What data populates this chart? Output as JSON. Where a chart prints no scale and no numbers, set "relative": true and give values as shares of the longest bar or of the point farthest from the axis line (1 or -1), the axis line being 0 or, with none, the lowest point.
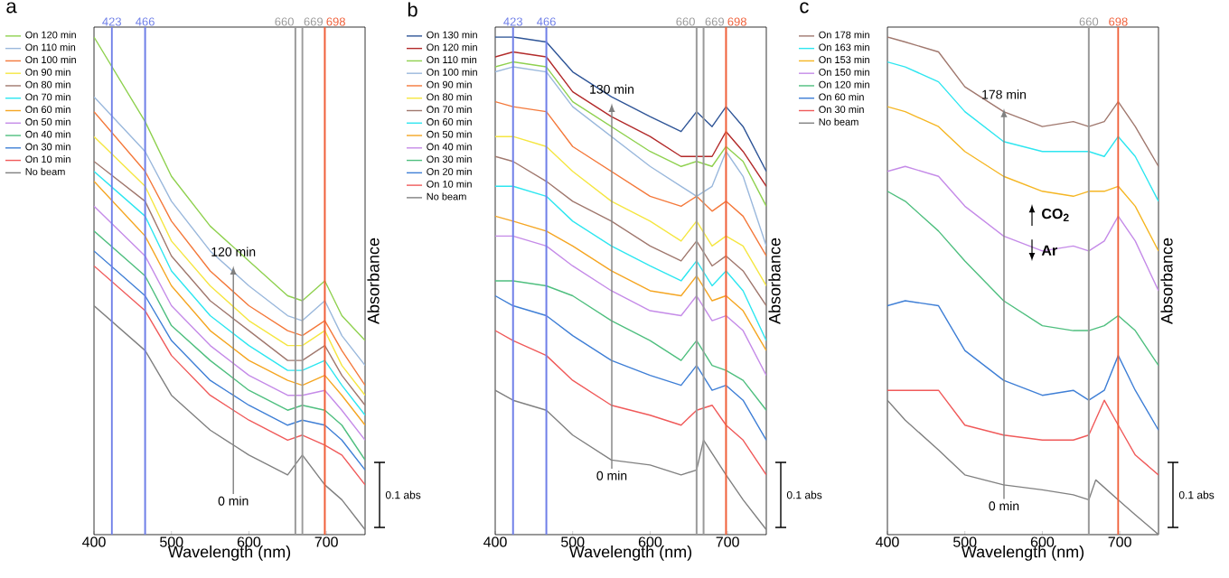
{
  "chart_data": [
    {
      "type": "line",
      "title": "a",
      "xlabel": "Wavelength (nm)",
      "ylabel": "Absorbance",
      "relative": true,
      "tick_labels": "x",
      "legend": "left",
      "xlim": [
        400,
        750
      ],
      "xticks": [
        400,
        500,
        600,
        700
      ],
      "x": [
        400,
        466,
        500,
        550,
        600,
        650,
        669,
        698,
        720,
        750
      ],
      "series": [
        {
          "name": "On 120 min",
          "color": "#8fd14f",
          "values": [
            1.0,
            0.83,
            0.72,
            0.62,
            0.55,
            0.48,
            0.47,
            0.51,
            0.44,
            0.39
          ]
        },
        {
          "name": "On 110 min",
          "color": "#9ab8dc",
          "values": [
            0.88,
            0.77,
            0.67,
            0.57,
            0.5,
            0.44,
            0.43,
            0.47,
            0.4,
            0.34
          ]
        },
        {
          "name": "On 100 min",
          "color": "#f4793b",
          "values": [
            0.85,
            0.73,
            0.63,
            0.53,
            0.46,
            0.41,
            0.4,
            0.43,
            0.37,
            0.3
          ]
        },
        {
          "name": "On 90 min",
          "color": "#f5e642",
          "values": [
            0.8,
            0.7,
            0.59,
            0.5,
            0.43,
            0.38,
            0.38,
            0.41,
            0.34,
            0.28
          ]
        },
        {
          "name": "On 80 min",
          "color": "#a0786e",
          "values": [
            0.75,
            0.67,
            0.56,
            0.47,
            0.41,
            0.35,
            0.35,
            0.38,
            0.32,
            0.26
          ]
        },
        {
          "name": "On 70 min",
          "color": "#2ee6f0",
          "values": [
            0.73,
            0.64,
            0.53,
            0.44,
            0.38,
            0.33,
            0.33,
            0.35,
            0.3,
            0.24
          ]
        },
        {
          "name": "On 60 min",
          "color": "#f5a623",
          "values": [
            0.71,
            0.6,
            0.5,
            0.41,
            0.35,
            0.31,
            0.3,
            0.32,
            0.28,
            0.22
          ]
        },
        {
          "name": "On 50 min",
          "color": "#c58be8",
          "values": [
            0.66,
            0.56,
            0.46,
            0.38,
            0.32,
            0.28,
            0.28,
            0.29,
            0.25,
            0.19
          ]
        },
        {
          "name": "On 40 min",
          "color": "#4fbf7f",
          "values": [
            0.61,
            0.52,
            0.42,
            0.35,
            0.29,
            0.25,
            0.26,
            0.25,
            0.22,
            0.15
          ]
        },
        {
          "name": "On 30 min",
          "color": "#3f7fd6",
          "values": [
            0.57,
            0.48,
            0.39,
            0.31,
            0.26,
            0.22,
            0.23,
            0.22,
            0.19,
            0.13
          ]
        },
        {
          "name": "On 10 min",
          "color": "#f05a5a",
          "values": [
            0.54,
            0.45,
            0.36,
            0.28,
            0.23,
            0.19,
            0.2,
            0.18,
            0.16,
            0.1
          ]
        },
        {
          "name": "No beam",
          "color": "#808080",
          "values": [
            0.46,
            0.37,
            0.28,
            0.21,
            0.16,
            0.12,
            0.16,
            0.1,
            0.07,
            0.01
          ]
        }
      ],
      "ref_lines": [
        {
          "axis": "x",
          "value": 423,
          "label": "423",
          "color": "#6f7fe8"
        },
        {
          "axis": "x",
          "value": 466,
          "label": "466",
          "color": "#6f7fe8"
        },
        {
          "axis": "x",
          "value": 660,
          "label": "660",
          "color": "#9a9a9a"
        },
        {
          "axis": "x",
          "value": 669,
          "label": "669",
          "color": "#9a9a9a"
        },
        {
          "axis": "x",
          "value": 698,
          "label": "698",
          "color": "#f0603a"
        }
      ],
      "annotations": [
        "120 min",
        "0 min",
        "0.1 abs"
      ]
    },
    {
      "type": "line",
      "title": "b",
      "xlabel": "Wavelength (nm)",
      "ylabel": "Absorbance",
      "relative": true,
      "tick_labels": "x",
      "legend": "left",
      "xlim": [
        400,
        750
      ],
      "xticks": [
        400,
        500,
        600,
        700
      ],
      "x": [
        400,
        423,
        466,
        500,
        550,
        600,
        640,
        660,
        680,
        698,
        720,
        750
      ],
      "series": [
        {
          "name": "On 130 min",
          "color": "#2f5597",
          "values": [
            1.0,
            1.0,
            0.99,
            0.93,
            0.88,
            0.84,
            0.81,
            0.85,
            0.82,
            0.86,
            0.82,
            0.73
          ]
        },
        {
          "name": "On 120 min",
          "color": "#b22a2a",
          "values": [
            0.96,
            0.97,
            0.96,
            0.89,
            0.84,
            0.8,
            0.76,
            0.76,
            0.76,
            0.81,
            0.77,
            0.7
          ]
        },
        {
          "name": "On 110 min",
          "color": "#8fd14f",
          "values": [
            0.94,
            0.95,
            0.94,
            0.87,
            0.82,
            0.77,
            0.74,
            0.75,
            0.74,
            0.78,
            0.75,
            0.66
          ]
        },
        {
          "name": "On 100 min",
          "color": "#9ab8dc",
          "values": [
            0.93,
            0.94,
            0.93,
            0.86,
            0.8,
            0.74,
            0.7,
            0.68,
            0.7,
            0.77,
            0.72,
            0.58
          ]
        },
        {
          "name": "On 90 min",
          "color": "#f4793b",
          "values": [
            0.87,
            0.86,
            0.85,
            0.78,
            0.73,
            0.68,
            0.66,
            0.68,
            0.65,
            0.67,
            0.64,
            0.56
          ]
        },
        {
          "name": "On 80 min",
          "color": "#f5e642",
          "values": [
            0.8,
            0.8,
            0.78,
            0.73,
            0.67,
            0.63,
            0.59,
            0.63,
            0.58,
            0.6,
            0.58,
            0.5
          ]
        },
        {
          "name": "On 70 min",
          "color": "#a0786e",
          "values": [
            0.76,
            0.75,
            0.71,
            0.67,
            0.63,
            0.58,
            0.55,
            0.59,
            0.54,
            0.56,
            0.53,
            0.46
          ]
        },
        {
          "name": "On 60 min",
          "color": "#2ee6f0",
          "values": [
            0.7,
            0.7,
            0.68,
            0.63,
            0.58,
            0.54,
            0.51,
            0.55,
            0.5,
            0.53,
            0.49,
            0.39
          ]
        },
        {
          "name": "On 50 min",
          "color": "#f5a623",
          "values": [
            0.64,
            0.63,
            0.61,
            0.58,
            0.53,
            0.49,
            0.48,
            0.52,
            0.47,
            0.48,
            0.45,
            0.37
          ]
        },
        {
          "name": "On 40 min",
          "color": "#c58be8",
          "values": [
            0.6,
            0.6,
            0.58,
            0.54,
            0.49,
            0.45,
            0.44,
            0.48,
            0.43,
            0.44,
            0.41,
            0.32
          ]
        },
        {
          "name": "On 30 min",
          "color": "#4fbf7f",
          "values": [
            0.51,
            0.51,
            0.5,
            0.48,
            0.43,
            0.39,
            0.35,
            0.39,
            0.34,
            0.33,
            0.31,
            0.25
          ]
        },
        {
          "name": "On 20 min",
          "color": "#3f7fd6",
          "values": [
            0.48,
            0.46,
            0.44,
            0.4,
            0.35,
            0.32,
            0.3,
            0.34,
            0.29,
            0.3,
            0.27,
            0.19
          ]
        },
        {
          "name": "On 10 min",
          "color": "#f05a5a",
          "values": [
            0.41,
            0.39,
            0.36,
            0.31,
            0.26,
            0.24,
            0.22,
            0.25,
            0.26,
            0.22,
            0.19,
            0.12
          ]
        },
        {
          "name": "No beam",
          "color": "#808080",
          "x": [
            400,
            423,
            466,
            500,
            550,
            600,
            640,
            660,
            669,
            698,
            720,
            750
          ],
          "values": [
            0.29,
            0.27,
            0.25,
            0.2,
            0.15,
            0.14,
            0.12,
            0.13,
            0.19,
            0.12,
            0.07,
            0.01
          ]
        }
      ],
      "ref_lines": [
        {
          "axis": "x",
          "value": 423,
          "label": "423",
          "color": "#6f7fe8"
        },
        {
          "axis": "x",
          "value": 466,
          "label": "466",
          "color": "#6f7fe8"
        },
        {
          "axis": "x",
          "value": 660,
          "label": "660",
          "color": "#9a9a9a"
        },
        {
          "axis": "x",
          "value": 669,
          "label": "669",
          "color": "#9a9a9a"
        },
        {
          "axis": "x",
          "value": 698,
          "label": "698",
          "color": "#f0603a"
        }
      ],
      "annotations": [
        "130 min",
        "0 min",
        "0.1 abs"
      ]
    },
    {
      "type": "line",
      "title": "c",
      "xlabel": "Wavelength (nm)",
      "ylabel": "Absorbance",
      "relative": true,
      "tick_labels": "x",
      "legend": "left",
      "xlim": [
        400,
        750
      ],
      "xticks": [
        400,
        500,
        600,
        700
      ],
      "x": [
        400,
        423,
        466,
        500,
        550,
        600,
        640,
        660,
        680,
        698,
        720,
        750
      ],
      "series": [
        {
          "name": "On 178 min",
          "color": "#a0786e",
          "values": [
            1.0,
            0.99,
            0.97,
            0.9,
            0.85,
            0.82,
            0.83,
            0.82,
            0.83,
            0.87,
            0.82,
            0.74
          ]
        },
        {
          "name": "On 163 min",
          "color": "#2ee6f0",
          "values": [
            0.95,
            0.94,
            0.91,
            0.85,
            0.79,
            0.77,
            0.77,
            0.77,
            0.76,
            0.8,
            0.76,
            0.67
          ]
        },
        {
          "name": "On 153 min",
          "color": "#f5b623",
          "values": [
            0.86,
            0.85,
            0.82,
            0.77,
            0.72,
            0.69,
            0.68,
            0.69,
            0.69,
            0.7,
            0.66,
            0.57
          ]
        },
        {
          "name": "On 150 min",
          "color": "#c58be8",
          "values": [
            0.73,
            0.74,
            0.72,
            0.66,
            0.6,
            0.57,
            0.58,
            0.57,
            0.59,
            0.64,
            0.59,
            0.49
          ]
        },
        {
          "name": "On 120 min",
          "color": "#4fbf7f",
          "values": [
            0.69,
            0.67,
            0.61,
            0.55,
            0.47,
            0.42,
            0.41,
            0.41,
            0.42,
            0.44,
            0.41,
            0.34
          ]
        },
        {
          "name": "On 60 min",
          "color": "#3f7fd6",
          "values": [
            0.46,
            0.47,
            0.46,
            0.37,
            0.31,
            0.28,
            0.29,
            0.27,
            0.29,
            0.36,
            0.29,
            0.21
          ]
        },
        {
          "name": "On 30 min",
          "color": "#f05a5a",
          "values": [
            0.29,
            0.29,
            0.29,
            0.22,
            0.2,
            0.19,
            0.19,
            0.2,
            0.27,
            0.22,
            0.16,
            0.12
          ]
        },
        {
          "name": "No beam",
          "color": "#808080",
          "x": [
            400,
            423,
            466,
            500,
            550,
            600,
            640,
            660,
            669,
            698,
            720,
            750
          ],
          "values": [
            0.27,
            0.23,
            0.17,
            0.12,
            0.1,
            0.09,
            0.08,
            0.07,
            0.11,
            0.07,
            0.04,
            0.0
          ]
        }
      ],
      "ref_lines": [
        {
          "axis": "x",
          "value": 660,
          "label": "660",
          "color": "#9a9a9a"
        },
        {
          "axis": "x",
          "value": 698,
          "label": "698",
          "color": "#f0603a"
        }
      ],
      "annotations": [
        "178 min",
        "0 min",
        "CO$_{2}$",
        "Ar",
        "0.1 abs"
      ]
    }
  ]
}
